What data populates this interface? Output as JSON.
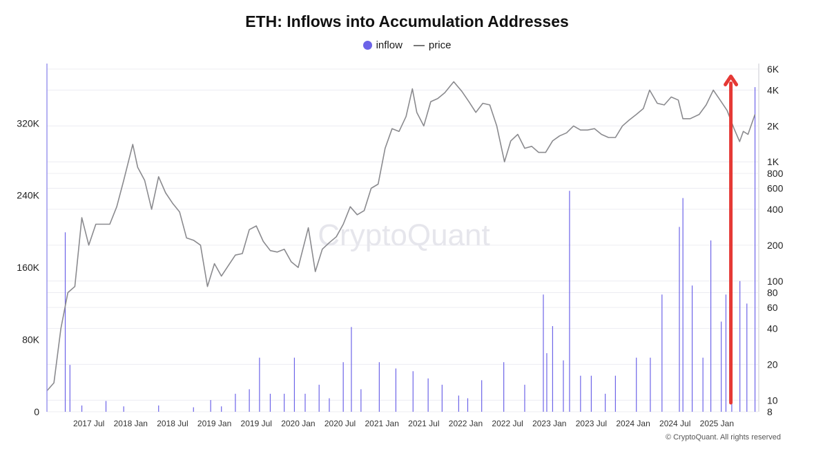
{
  "chart_data": {
    "type": "bar",
    "title": "ETH: Inflows into Accumulation Addresses",
    "xlabel": "",
    "ylabel": "",
    "x_ticks": [
      "2017 Jul",
      "2018 Jan",
      "2018 Jul",
      "2019 Jan",
      "2019 Jul",
      "2020 Jan",
      "2020 Jul",
      "2021 Jan",
      "2021 Jul",
      "2022 Jan",
      "2022 Jul",
      "2023 Jan",
      "2023 Jul",
      "2024 Jan",
      "2024 Jul",
      "2025 Jan"
    ],
    "x_range": [
      "2017-01",
      "2025-06"
    ],
    "y_left_ticks": [
      "0",
      "80K",
      "160K",
      "240K",
      "320K"
    ],
    "y_left_range": [
      0,
      380000
    ],
    "y_right_ticks": [
      "8",
      "10",
      "20",
      "40",
      "60",
      "80",
      "100",
      "200",
      "400",
      "600",
      "800",
      "1K",
      "2K",
      "4K",
      "6K"
    ],
    "y_right_range": [
      8,
      6000
    ],
    "y_right_scale": "log",
    "grid": true,
    "legend_position": "top-center",
    "series": [
      {
        "name": "inflow",
        "type": "bar",
        "axis": "left",
        "color": "#6c63e8",
        "points": [
          [
            "2017-03-20",
            199000
          ],
          [
            "2017-04-10",
            52000
          ],
          [
            "2017-06-01",
            7000
          ],
          [
            "2017-09-15",
            12000
          ],
          [
            "2017-12-01",
            6000
          ],
          [
            "2018-05-01",
            7000
          ],
          [
            "2018-10-01",
            5000
          ],
          [
            "2018-12-15",
            13000
          ],
          [
            "2019-02-01",
            6000
          ],
          [
            "2019-04-01",
            20000
          ],
          [
            "2019-06-01",
            25000
          ],
          [
            "2019-07-15",
            60000
          ],
          [
            "2019-09-01",
            20000
          ],
          [
            "2019-11-01",
            20000
          ],
          [
            "2019-12-15",
            60000
          ],
          [
            "2020-02-01",
            20000
          ],
          [
            "2020-04-01",
            30000
          ],
          [
            "2020-05-15",
            15000
          ],
          [
            "2020-07-15",
            55000
          ],
          [
            "2020-08-20",
            94000
          ],
          [
            "2020-10-01",
            25000
          ],
          [
            "2020-12-20",
            55000
          ],
          [
            "2021-03-01",
            48000
          ],
          [
            "2021-05-15",
            45000
          ],
          [
            "2021-07-20",
            37000
          ],
          [
            "2021-09-20",
            30000
          ],
          [
            "2021-12-01",
            18000
          ],
          [
            "2022-01-10",
            15000
          ],
          [
            "2022-03-10",
            35000
          ],
          [
            "2022-06-15",
            55000
          ],
          [
            "2022-09-15",
            30000
          ],
          [
            "2022-12-05",
            130000
          ],
          [
            "2022-12-20",
            65000
          ],
          [
            "2023-01-15",
            95000
          ],
          [
            "2023-03-01",
            57000
          ],
          [
            "2023-03-28",
            245000
          ],
          [
            "2023-05-15",
            40000
          ],
          [
            "2023-07-01",
            40000
          ],
          [
            "2023-09-01",
            20000
          ],
          [
            "2023-10-15",
            40000
          ],
          [
            "2024-01-15",
            60000
          ],
          [
            "2024-03-15",
            60000
          ],
          [
            "2024-05-05",
            130000
          ],
          [
            "2024-07-20",
            205000
          ],
          [
            "2024-08-05",
            237000
          ],
          [
            "2024-09-15",
            140000
          ],
          [
            "2024-11-01",
            60000
          ],
          [
            "2024-12-05",
            190000
          ],
          [
            "2025-01-20",
            100000
          ],
          [
            "2025-02-10",
            130000
          ],
          [
            "2025-03-05",
            150000
          ],
          [
            "2025-04-10",
            145000
          ],
          [
            "2025-05-10",
            120000
          ],
          [
            "2025-06-15",
            360000
          ]
        ]
      },
      {
        "name": "price",
        "type": "line",
        "axis": "right",
        "color": "#8a8a8e",
        "points": [
          [
            "2017-01-01",
            12
          ],
          [
            "2017-02-01",
            14
          ],
          [
            "2017-03-01",
            40
          ],
          [
            "2017-04-01",
            80
          ],
          [
            "2017-05-01",
            90
          ],
          [
            "2017-06-01",
            340
          ],
          [
            "2017-07-01",
            200
          ],
          [
            "2017-08-01",
            300
          ],
          [
            "2017-09-01",
            300
          ],
          [
            "2017-10-01",
            300
          ],
          [
            "2017-11-01",
            420
          ],
          [
            "2017-12-01",
            700
          ],
          [
            "2018-01-10",
            1400
          ],
          [
            "2018-02-01",
            900
          ],
          [
            "2018-03-01",
            700
          ],
          [
            "2018-04-01",
            400
          ],
          [
            "2018-05-01",
            750
          ],
          [
            "2018-06-01",
            550
          ],
          [
            "2018-07-01",
            450
          ],
          [
            "2018-08-01",
            380
          ],
          [
            "2018-09-01",
            230
          ],
          [
            "2018-10-01",
            220
          ],
          [
            "2018-11-01",
            200
          ],
          [
            "2018-12-01",
            90
          ],
          [
            "2019-01-01",
            140
          ],
          [
            "2019-02-01",
            110
          ],
          [
            "2019-03-01",
            135
          ],
          [
            "2019-04-01",
            165
          ],
          [
            "2019-05-01",
            170
          ],
          [
            "2019-06-01",
            270
          ],
          [
            "2019-07-01",
            290
          ],
          [
            "2019-08-01",
            215
          ],
          [
            "2019-09-01",
            180
          ],
          [
            "2019-10-01",
            175
          ],
          [
            "2019-11-01",
            185
          ],
          [
            "2019-12-01",
            145
          ],
          [
            "2020-01-01",
            130
          ],
          [
            "2020-02-15",
            280
          ],
          [
            "2020-03-15",
            120
          ],
          [
            "2020-04-15",
            185
          ],
          [
            "2020-05-15",
            210
          ],
          [
            "2020-06-15",
            235
          ],
          [
            "2020-07-15",
            300
          ],
          [
            "2020-08-15",
            420
          ],
          [
            "2020-09-15",
            360
          ],
          [
            "2020-10-15",
            390
          ],
          [
            "2020-11-15",
            600
          ],
          [
            "2020-12-15",
            650
          ],
          [
            "2021-01-15",
            1300
          ],
          [
            "2021-02-15",
            1900
          ],
          [
            "2021-03-15",
            1800
          ],
          [
            "2021-04-15",
            2400
          ],
          [
            "2021-05-12",
            4100
          ],
          [
            "2021-06-01",
            2600
          ],
          [
            "2021-07-01",
            2000
          ],
          [
            "2021-08-01",
            3200
          ],
          [
            "2021-09-01",
            3400
          ],
          [
            "2021-10-01",
            3800
          ],
          [
            "2021-11-10",
            4700
          ],
          [
            "2021-12-15",
            3900
          ],
          [
            "2022-01-15",
            3200
          ],
          [
            "2022-02-15",
            2600
          ],
          [
            "2022-03-15",
            3100
          ],
          [
            "2022-04-15",
            3000
          ],
          [
            "2022-05-15",
            2000
          ],
          [
            "2022-06-18",
            1000
          ],
          [
            "2022-07-15",
            1500
          ],
          [
            "2022-08-15",
            1700
          ],
          [
            "2022-09-15",
            1300
          ],
          [
            "2022-10-15",
            1350
          ],
          [
            "2022-11-15",
            1200
          ],
          [
            "2022-12-15",
            1200
          ],
          [
            "2023-01-15",
            1500
          ],
          [
            "2023-02-15",
            1650
          ],
          [
            "2023-03-15",
            1750
          ],
          [
            "2023-04-15",
            2000
          ],
          [
            "2023-05-15",
            1850
          ],
          [
            "2023-06-15",
            1850
          ],
          [
            "2023-07-15",
            1900
          ],
          [
            "2023-08-15",
            1700
          ],
          [
            "2023-09-15",
            1600
          ],
          [
            "2023-10-15",
            1600
          ],
          [
            "2023-11-15",
            2000
          ],
          [
            "2023-12-15",
            2250
          ],
          [
            "2024-01-15",
            2500
          ],
          [
            "2024-02-15",
            2800
          ],
          [
            "2024-03-12",
            4000
          ],
          [
            "2024-04-15",
            3100
          ],
          [
            "2024-05-15",
            3000
          ],
          [
            "2024-06-15",
            3500
          ],
          [
            "2024-07-15",
            3300
          ],
          [
            "2024-08-05",
            2300
          ],
          [
            "2024-09-06",
            2300
          ],
          [
            "2024-10-15",
            2500
          ],
          [
            "2024-11-15",
            3000
          ],
          [
            "2024-12-16",
            4000
          ],
          [
            "2025-01-15",
            3300
          ],
          [
            "2025-02-15",
            2700
          ],
          [
            "2025-03-15",
            1900
          ],
          [
            "2025-04-09",
            1480
          ],
          [
            "2025-04-25",
            1800
          ],
          [
            "2025-05-15",
            1700
          ],
          [
            "2025-06-15",
            2500
          ]
        ]
      }
    ],
    "annotations": [
      {
        "type": "arrow",
        "color": "#e53935",
        "at": "2025-03-01",
        "from_value": 10000,
        "to_value": 372000,
        "axis": "left"
      }
    ]
  },
  "watermark": "CryptoQuant",
  "copyright": "© CryptoQuant. All rights reserved"
}
